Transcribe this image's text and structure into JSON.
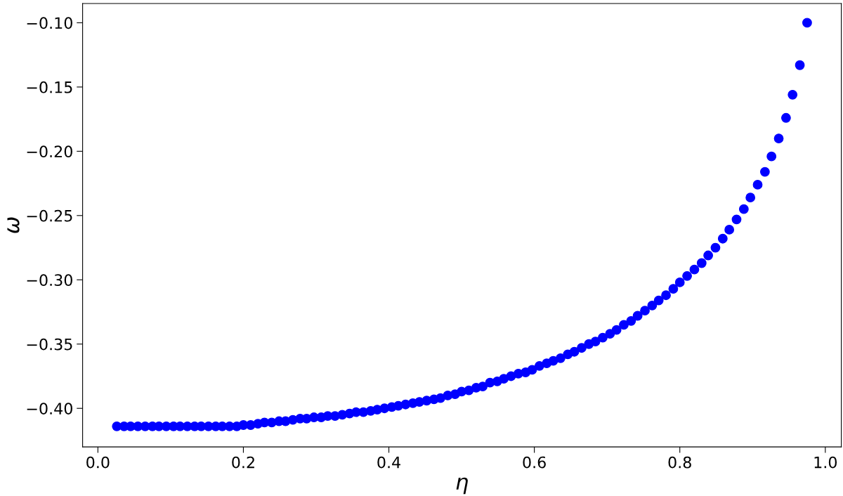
{
  "chart_data": {
    "type": "scatter",
    "xlabel": "η",
    "ylabel": "ω",
    "x": [
      0.026,
      0.036,
      0.045,
      0.055,
      0.065,
      0.075,
      0.084,
      0.094,
      0.104,
      0.113,
      0.123,
      0.133,
      0.142,
      0.152,
      0.162,
      0.171,
      0.181,
      0.191,
      0.2,
      0.21,
      0.22,
      0.229,
      0.239,
      0.249,
      0.258,
      0.268,
      0.278,
      0.287,
      0.297,
      0.307,
      0.316,
      0.326,
      0.336,
      0.346,
      0.355,
      0.365,
      0.375,
      0.384,
      0.394,
      0.404,
      0.413,
      0.423,
      0.433,
      0.442,
      0.452,
      0.462,
      0.471,
      0.481,
      0.491,
      0.5,
      0.51,
      0.52,
      0.529,
      0.539,
      0.549,
      0.558,
      0.568,
      0.578,
      0.588,
      0.597,
      0.607,
      0.617,
      0.626,
      0.636,
      0.646,
      0.655,
      0.665,
      0.675,
      0.684,
      0.694,
      0.704,
      0.713,
      0.723,
      0.733,
      0.742,
      0.752,
      0.762,
      0.771,
      0.781,
      0.791,
      0.8,
      0.81,
      0.82,
      0.83,
      0.839,
      0.849,
      0.859,
      0.868,
      0.878,
      0.888,
      0.897,
      0.907,
      0.917,
      0.926,
      0.936,
      0.946,
      0.955,
      0.965,
      0.975
    ],
    "series": [
      {
        "color": "#0000ff",
        "values": [
          -0.414,
          -0.414,
          -0.414,
          -0.414,
          -0.414,
          -0.414,
          -0.414,
          -0.414,
          -0.414,
          -0.414,
          -0.414,
          -0.414,
          -0.414,
          -0.414,
          -0.414,
          -0.414,
          -0.414,
          -0.414,
          -0.413,
          -0.413,
          -0.412,
          -0.411,
          -0.411,
          -0.41,
          -0.41,
          -0.409,
          -0.408,
          -0.408,
          -0.407,
          -0.407,
          -0.406,
          -0.406,
          -0.405,
          -0.404,
          -0.403,
          -0.403,
          -0.402,
          -0.401,
          -0.4,
          -0.399,
          -0.398,
          -0.397,
          -0.396,
          -0.395,
          -0.394,
          -0.393,
          -0.392,
          -0.39,
          -0.389,
          -0.387,
          -0.386,
          -0.384,
          -0.383,
          -0.38,
          -0.379,
          -0.377,
          -0.375,
          -0.373,
          -0.372,
          -0.37,
          -0.367,
          -0.365,
          -0.363,
          -0.361,
          -0.358,
          -0.356,
          -0.353,
          -0.35,
          -0.348,
          -0.345,
          -0.342,
          -0.339,
          -0.335,
          -0.332,
          -0.328,
          -0.324,
          -0.32,
          -0.316,
          -0.312,
          -0.307,
          -0.302,
          -0.297,
          -0.292,
          -0.287,
          -0.281,
          -0.275,
          -0.268,
          -0.261,
          -0.253,
          -0.245,
          -0.236,
          -0.226,
          -0.216,
          -0.204,
          -0.19,
          -0.174,
          -0.156,
          -0.133,
          -0.1
        ]
      }
    ],
    "marker": "circle",
    "grid": false,
    "legend": false,
    "xlim": [
      -0.021,
      1.022
    ],
    "ylim": [
      -0.43,
      -0.085
    ],
    "xticks": [
      {
        "value": 0,
        "label": "0.0"
      },
      0.2,
      0.4,
      0.6,
      0.8,
      {
        "value": 1,
        "label": "1.0"
      }
    ],
    "yticks": [
      {
        "value": -0.4,
        "label": "−0.40"
      },
      {
        "value": -0.35,
        "label": "−0.35"
      },
      {
        "value": -0.3,
        "label": "−0.30"
      },
      {
        "value": -0.25,
        "label": "−0.25"
      },
      {
        "value": -0.2,
        "label": "−0.20"
      },
      {
        "value": -0.15,
        "label": "−0.15"
      },
      {
        "value": -0.1,
        "label": "−0.10"
      }
    ]
  }
}
